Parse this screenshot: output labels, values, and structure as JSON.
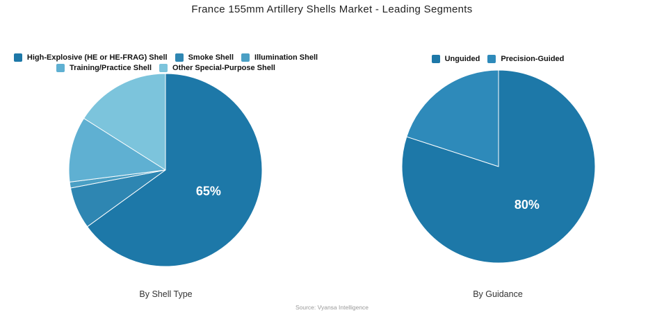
{
  "title": "France 155mm Artillery Shells Market - Leading Segments",
  "source": "Source: Vyansa Intelligence",
  "colors": {
    "background": "#ffffff",
    "title_text": "#222222",
    "legend_text": "#111111",
    "caption_text": "#333333",
    "source_text": "#9a9a9a",
    "slice_label_text": "#ffffff",
    "slice_stroke": "#ffffff"
  },
  "chart_data": [
    {
      "type": "pie",
      "title": "By Shell Type",
      "categories": [
        "High-Explosive (HE or HE-FRAG) Shell",
        "Smoke Shell",
        "Illumination Shell",
        "Training/Practice Shell",
        "Other Special-Purpose Shell"
      ],
      "values": [
        65,
        7,
        1,
        11,
        16
      ],
      "colors": [
        "#1d78a8",
        "#2e86b2",
        "#4a9fc4",
        "#5fb0d2",
        "#7cc4dc"
      ],
      "slice_labels": [
        "65%",
        "",
        "",
        "",
        ""
      ],
      "legend_rows": [
        [
          0,
          1,
          2
        ],
        [
          3,
          4
        ]
      ],
      "start_angle_deg": 0,
      "direction": "clockwise",
      "legend_position": "top"
    },
    {
      "type": "pie",
      "title": "By Guidance",
      "categories": [
        "Unguided",
        "Precision-Guided"
      ],
      "values": [
        80,
        20
      ],
      "colors": [
        "#1d78a8",
        "#2e8aba"
      ],
      "slice_labels": [
        "80%",
        ""
      ],
      "legend_rows": [
        [
          0,
          1
        ]
      ],
      "start_angle_deg": 0,
      "direction": "clockwise",
      "legend_position": "top"
    }
  ]
}
